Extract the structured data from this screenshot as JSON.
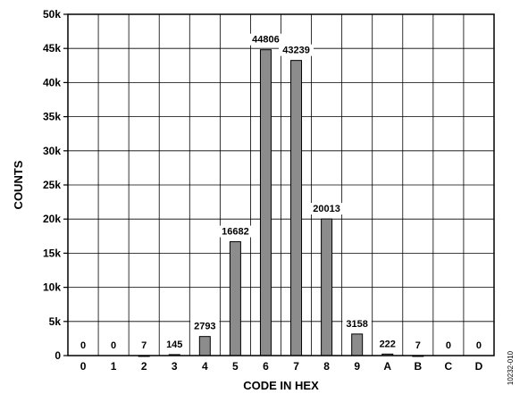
{
  "chart_data": {
    "type": "bar",
    "categories": [
      "0",
      "1",
      "2",
      "3",
      "4",
      "5",
      "6",
      "7",
      "8",
      "9",
      "A",
      "B",
      "C",
      "D"
    ],
    "values": [
      0,
      0,
      7,
      145,
      2793,
      16682,
      44806,
      43239,
      20013,
      3158,
      222,
      7,
      0,
      0
    ],
    "data_labels": [
      "0",
      "0",
      "7",
      "145",
      "2793",
      "16682",
      "44806",
      "43239",
      "20013",
      "3158",
      "222",
      "7",
      "0",
      "0"
    ],
    "xlabel": "CODE IN HEX",
    "ylabel": "COUNTS",
    "ylim": [
      0,
      50000
    ],
    "yticks": [
      0,
      5000,
      10000,
      15000,
      20000,
      25000,
      30000,
      35000,
      40000,
      45000,
      50000
    ],
    "ytick_labels": [
      "0",
      "5k",
      "10k",
      "15k",
      "20k",
      "25k",
      "30k",
      "35k",
      "40k",
      "45k",
      "50k"
    ],
    "grid": true,
    "bar_color": "#8c8c8c",
    "figure_id": "10232-010"
  }
}
